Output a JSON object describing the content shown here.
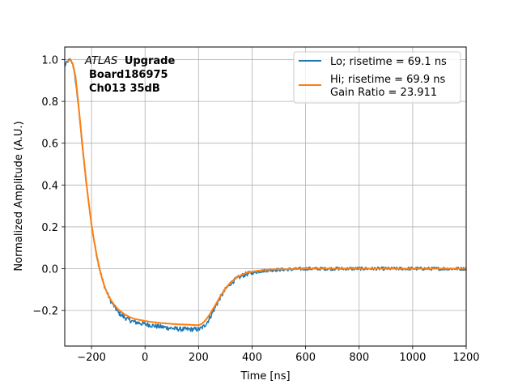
{
  "chart_data": {
    "type": "line",
    "xlabel": "Time [ns]",
    "ylabel": "Normalized Amplitude (A.U.)",
    "xlim": [
      -300,
      1200
    ],
    "ylim": [
      -0.37,
      1.06
    ],
    "xticks": [
      -200,
      0,
      200,
      400,
      600,
      800,
      1000,
      1200
    ],
    "yticks": [
      -0.2,
      0.0,
      0.2,
      0.4,
      0.6,
      0.8,
      1.0
    ],
    "xtick_labels": [
      "−200",
      "0",
      "200",
      "400",
      "600",
      "800",
      "1000",
      "1200"
    ],
    "ytick_labels": [
      "−0.2",
      "0.0",
      "0.2",
      "0.4",
      "0.6",
      "0.8",
      "1.0"
    ],
    "grid": true,
    "legend_position": "top-right",
    "annotation": {
      "line1_italic": "ATLAS",
      "line1_bold": "Upgrade",
      "line2": "Board186975",
      "line3": "Ch013 35dB"
    },
    "series": [
      {
        "name": "Lo; risetime = 69.1 ns",
        "color": "#1f77b4",
        "noise": 0.008,
        "x": [
          -300,
          -290,
          -280,
          -270,
          -260,
          -250,
          -240,
          -230,
          -220,
          -210,
          -200,
          -190,
          -180,
          -170,
          -160,
          -150,
          -140,
          -130,
          -120,
          -110,
          -100,
          -80,
          -60,
          -40,
          -20,
          0,
          20,
          40,
          60,
          80,
          100,
          120,
          140,
          160,
          180,
          200,
          210,
          220,
          230,
          240,
          250,
          260,
          280,
          300,
          320,
          340,
          360,
          380,
          400,
          420,
          440,
          460,
          500,
          550,
          600,
          700,
          800,
          900,
          1000,
          1100,
          1200
        ],
        "y": [
          0.97,
          0.99,
          1.0,
          0.98,
          0.9,
          0.79,
          0.66,
          0.53,
          0.41,
          0.31,
          0.21,
          0.13,
          0.06,
          0.0,
          -0.05,
          -0.09,
          -0.12,
          -0.15,
          -0.17,
          -0.19,
          -0.21,
          -0.23,
          -0.245,
          -0.255,
          -0.26,
          -0.265,
          -0.27,
          -0.275,
          -0.278,
          -0.282,
          -0.285,
          -0.288,
          -0.29,
          -0.29,
          -0.29,
          -0.29,
          -0.285,
          -0.275,
          -0.26,
          -0.24,
          -0.215,
          -0.19,
          -0.14,
          -0.1,
          -0.07,
          -0.05,
          -0.035,
          -0.025,
          -0.02,
          -0.015,
          -0.01,
          -0.008,
          -0.005,
          -0.003,
          0.0,
          0.0,
          0.0,
          0.0,
          0.0,
          0.0,
          0.0
        ]
      },
      {
        "name": "Hi; risetime = 69.9 ns\n Gain Ratio = 23.911",
        "color": "#ff7f0e",
        "noise": 0.0,
        "x": [
          -290,
          -280,
          -270,
          -260,
          -250,
          -240,
          -230,
          -220,
          -210,
          -200,
          -190,
          -180,
          -170,
          -160,
          -150,
          -140,
          -130,
          -120,
          -110,
          -100,
          -80,
          -60,
          -40,
          -20,
          0,
          20,
          40,
          60,
          80,
          100,
          120,
          140,
          160,
          180,
          200,
          210,
          220,
          230,
          240,
          250,
          260,
          280,
          300,
          320,
          340,
          360,
          380,
          400,
          420,
          440,
          460,
          500,
          550,
          600,
          700,
          800,
          900,
          1000,
          1100,
          1200
        ],
        "y": [
          0.99,
          1.0,
          0.98,
          0.92,
          0.8,
          0.67,
          0.54,
          0.42,
          0.31,
          0.21,
          0.13,
          0.06,
          0.0,
          -0.05,
          -0.09,
          -0.12,
          -0.145,
          -0.165,
          -0.18,
          -0.195,
          -0.215,
          -0.23,
          -0.24,
          -0.245,
          -0.25,
          -0.254,
          -0.257,
          -0.26,
          -0.262,
          -0.264,
          -0.266,
          -0.267,
          -0.268,
          -0.269,
          -0.27,
          -0.265,
          -0.255,
          -0.24,
          -0.222,
          -0.2,
          -0.18,
          -0.135,
          -0.095,
          -0.065,
          -0.045,
          -0.03,
          -0.02,
          -0.015,
          -0.01,
          -0.007,
          -0.005,
          -0.003,
          -0.002,
          0.0,
          0.0,
          0.0,
          0.0,
          0.0,
          0.0,
          0.0
        ]
      }
    ]
  }
}
